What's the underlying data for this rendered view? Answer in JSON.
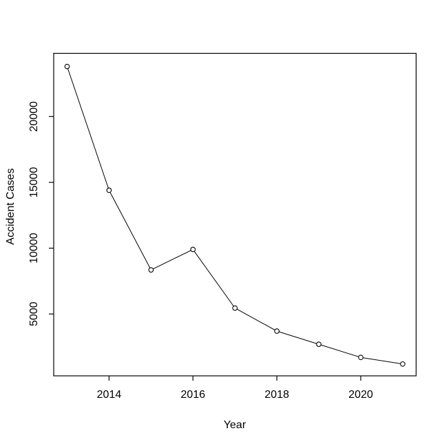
{
  "figure": {
    "background": "#FFFFFF",
    "foreground": "#000000"
  },
  "chart_data": {
    "type": "line",
    "title": "",
    "xlabel": "Year",
    "ylabel": "Accident Cases",
    "x": [
      2013,
      2014,
      2015,
      2016,
      2017,
      2018,
      2019,
      2020,
      2021
    ],
    "values": [
      23800,
      14400,
      8350,
      9900,
      5450,
      3700,
      2700,
      1700,
      1200
    ],
    "series_name": "Accident Cases",
    "x_ticks": [
      2014,
      2016,
      2018,
      2020
    ],
    "y_ticks": [
      5000,
      10000,
      15000,
      20000
    ],
    "xlim": [
      2012.68,
      2021.32
    ],
    "ylim": [
      300,
      24800
    ],
    "grid": false,
    "legend_position": "none",
    "marker": "open-circle",
    "marker_fill": "#FFFFFF",
    "line_color": "#000000",
    "axis_color": "#000000"
  }
}
